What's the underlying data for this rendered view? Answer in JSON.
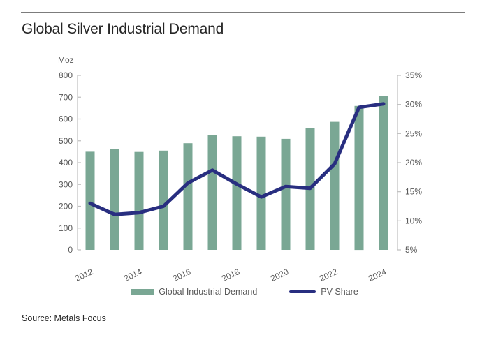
{
  "header": {
    "title": "Global Silver Industrial Demand"
  },
  "footer": {
    "source": "Source: Metals Focus"
  },
  "legend": {
    "bar_label": "Global Industrial Demand",
    "line_label": "PV Share"
  },
  "colors": {
    "bar": "#7AA794",
    "line": "#282E80",
    "axis": "#BFBFBF",
    "tick_text": "#595959",
    "rule": "#7C7C7C"
  },
  "chart_data": {
    "type": "bar+line",
    "title": "Global Silver Industrial Demand",
    "unit_label": "Moz",
    "categories": [
      "2012",
      "2013",
      "2014",
      "2015",
      "2016",
      "2017",
      "2018",
      "2019",
      "2020",
      "2021",
      "2022",
      "2023",
      "2024"
    ],
    "x_axis": {
      "labeled_ticks": [
        "2012",
        "2014",
        "2016",
        "2018",
        "2020",
        "2022",
        "2024"
      ],
      "label_rotation_deg": -25
    },
    "left_axis": {
      "title": "Moz",
      "min": 0,
      "max": 800,
      "step": 100,
      "ticks": [
        0,
        100,
        200,
        300,
        400,
        500,
        600,
        700,
        800
      ]
    },
    "right_axis": {
      "min": 5,
      "max": 35,
      "step": 5,
      "suffix": "%",
      "ticks": [
        5,
        10,
        15,
        20,
        25,
        30,
        35
      ]
    },
    "series": [
      {
        "name": "Global Industrial Demand",
        "type": "bar",
        "axis": "left",
        "unit": "Moz",
        "color": "#7AA794",
        "values": [
          450,
          461,
          449,
          455,
          489,
          525,
          521,
          519,
          509,
          558,
          587,
          660,
          704
        ]
      },
      {
        "name": "PV Share",
        "type": "line",
        "axis": "right",
        "unit": "%",
        "color": "#282E80",
        "values": [
          13.0,
          11.1,
          11.4,
          12.5,
          16.5,
          18.7,
          16.3,
          14.1,
          15.9,
          15.6,
          19.8,
          29.5,
          30.1
        ]
      }
    ],
    "grid": false,
    "legend_position": "bottom"
  }
}
